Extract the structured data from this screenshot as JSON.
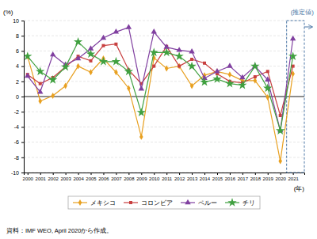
{
  "chart_data": {
    "type": "line",
    "x_label": "(年)",
    "y_label": "(%)",
    "annotation": "(推定値)",
    "source": "資料：IMF WEO, April 2020から作成。",
    "x": [
      2000,
      2001,
      2002,
      2003,
      2004,
      2005,
      2006,
      2007,
      2008,
      2009,
      2010,
      2011,
      2012,
      2013,
      2014,
      2015,
      2016,
      2017,
      2018,
      2019,
      2020,
      2021
    ],
    "series": [
      {
        "name": "メキシコ",
        "color": "#E8A020",
        "marker": "diamond",
        "values": [
          5.3,
          -0.6,
          0.1,
          1.4,
          4.0,
          3.2,
          5.0,
          3.2,
          1.1,
          -5.3,
          5.1,
          3.7,
          4.0,
          1.4,
          2.8,
          3.3,
          2.9,
          2.1,
          2.1,
          -0.1,
          -8.5,
          3.0
        ]
      },
      {
        "name": "コロンビア",
        "color": "#C84040",
        "marker": "square",
        "values": [
          2.9,
          1.7,
          2.5,
          3.9,
          5.3,
          4.7,
          6.7,
          6.9,
          3.5,
          1.7,
          4.0,
          6.6,
          4.0,
          4.9,
          4.4,
          3.0,
          2.0,
          1.8,
          2.6,
          3.3,
          -2.5,
          4.0
        ]
      },
      {
        "name": "ペルー",
        "color": "#8040A0",
        "marker": "triangle",
        "values": [
          2.7,
          0.6,
          5.5,
          4.2,
          5.0,
          6.3,
          7.7,
          8.5,
          9.1,
          1.0,
          8.5,
          6.5,
          6.1,
          5.9,
          2.4,
          3.3,
          4.0,
          2.5,
          4.0,
          2.2,
          -4.5,
          7.6
        ]
      },
      {
        "name": "チリ",
        "color": "#40A040",
        "marker": "star",
        "values": [
          5.3,
          3.3,
          2.2,
          3.9,
          7.2,
          5.6,
          4.6,
          4.6,
          3.3,
          -2.1,
          5.8,
          5.8,
          5.3,
          4.0,
          1.9,
          2.3,
          1.7,
          1.5,
          4.0,
          1.1,
          -4.5,
          5.3
        ]
      }
    ],
    "xlim": [
      1999.7,
      2021.9
    ],
    "xticks": [
      2000,
      2001,
      2002,
      2003,
      2004,
      2005,
      2006,
      2007,
      2008,
      2009,
      2010,
      2011,
      2012,
      2013,
      2014,
      2015,
      2016,
      2017,
      2018,
      2019,
      2020,
      2021
    ],
    "ylim": [
      -10,
      10
    ],
    "yticks": [
      -10,
      -8,
      -6,
      -4,
      -2,
      0,
      2,
      4,
      6,
      8,
      10
    ],
    "grid": true,
    "legend": "bottom"
  }
}
